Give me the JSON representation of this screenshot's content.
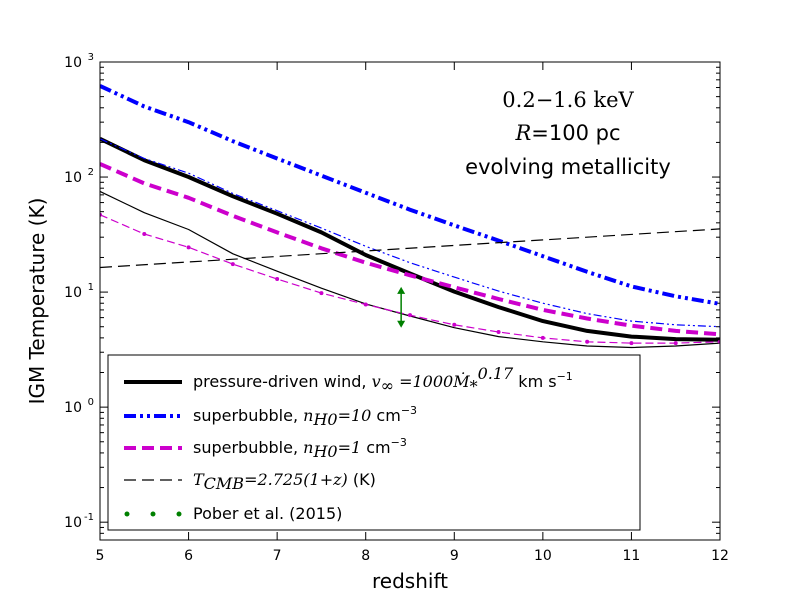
{
  "chart_data": {
    "type": "line",
    "title": "",
    "xlabel": "redshift",
    "ylabel": "IGM Temperature (K)",
    "xlim": [
      5,
      12
    ],
    "ylim": [
      0.07,
      1000
    ],
    "yscale": "log",
    "xticks": [
      "5",
      "6",
      "7",
      "8",
      "9",
      "10",
      "11",
      "12"
    ],
    "yticks": [
      {
        "base": "10",
        "exp": "-1",
        "value": 0.1
      },
      {
        "base": "10",
        "exp": "0",
        "value": 1
      },
      {
        "base": "10",
        "exp": "1",
        "value": 10
      },
      {
        "base": "10",
        "exp": "2",
        "value": 100
      },
      {
        "base": "10",
        "exp": "3",
        "value": 1000
      }
    ],
    "annotations": {
      "line1": "0.2−1.6 keV",
      "line2_var": "R",
      "line2_rest": "=100 pc",
      "line3": "evolving metallicity"
    },
    "legend_position": "lower-left",
    "legend": [
      {
        "key": "wind",
        "text": "pressure-driven wind, ",
        "math": "v∞ =1000Ṁ*^0.17",
        "math_main": "v",
        "math_sub": "∞",
        "math_mid": " =1000",
        "math_mdot": "Ṁ",
        "math_star": "*",
        "math_exp": "0.17",
        "tail": " km s",
        "tail_exp": "−1"
      },
      {
        "key": "sb10",
        "text": "superbubble, ",
        "math": "n",
        "math_sub": "H0",
        "math_mid": "=10",
        "tail": " cm",
        "tail_exp": "−3"
      },
      {
        "key": "sb1",
        "text": "superbubble, ",
        "math": "n",
        "math_sub": "H0",
        "math_mid": "=1",
        "tail": " cm",
        "tail_exp": "−3"
      },
      {
        "key": "cmb",
        "text": "",
        "math": "T",
        "math_sub": "CMB",
        "math_mid": "=2.725(1+",
        "math_z": "z",
        "math_end": ")",
        "tail": " (K)"
      },
      {
        "key": "pober",
        "text": "Pober et al. (2015)"
      }
    ],
    "series": [
      {
        "key": "wind",
        "name": "pressure-driven wind, thick",
        "color": "#000000",
        "x": [
          5,
          5.5,
          6,
          6.5,
          7,
          7.5,
          8,
          8.5,
          9,
          9.5,
          10,
          10.5,
          11,
          11.5,
          12
        ],
        "y": [
          215,
          140,
          100,
          68,
          48,
          33,
          21,
          14.5,
          10.1,
          7.4,
          5.6,
          4.6,
          4.1,
          3.9,
          3.85
        ]
      },
      {
        "key": "wind_thin",
        "name": "pressure-driven wind, thin",
        "color": "#000000",
        "x": [
          5,
          5.5,
          6,
          6.5,
          7,
          7.5,
          8,
          8.5,
          9,
          9.5,
          10,
          10.5,
          11,
          11.5,
          12
        ],
        "y": [
          75,
          49,
          35,
          21.5,
          15.2,
          10.8,
          7.9,
          6.2,
          4.9,
          4.1,
          3.7,
          3.4,
          3.3,
          3.4,
          3.6
        ]
      },
      {
        "key": "sb10",
        "name": "superbubble nH0=10 thick",
        "color": "#0000ff",
        "x": [
          5,
          5.5,
          6,
          6.5,
          7,
          7.5,
          8,
          8.5,
          9,
          9.5,
          10,
          10.5,
          11,
          11.5,
          12
        ],
        "y": [
          620,
          410,
          300,
          205,
          145,
          103,
          73,
          52,
          38,
          28,
          20.5,
          15,
          11.2,
          9.2,
          7.9
        ]
      },
      {
        "key": "sb10_thin",
        "name": "superbubble nH0=10 thin",
        "color": "#0000ff",
        "x": [
          5,
          5.5,
          6,
          6.5,
          7,
          7.5,
          8,
          8.5,
          9,
          9.5,
          10,
          10.5,
          11,
          11.5,
          12
        ],
        "y": [
          215,
          145,
          108,
          72,
          51,
          36,
          25,
          18,
          13.5,
          10.2,
          8,
          6.5,
          5.6,
          5.2,
          5.0
        ]
      },
      {
        "key": "sb1",
        "name": "superbubble nH0=1 thick",
        "color": "#cc00cc",
        "x": [
          5,
          5.5,
          6,
          6.5,
          7,
          7.5,
          8,
          8.5,
          9,
          9.5,
          10,
          10.5,
          11,
          11.5,
          12
        ],
        "y": [
          130,
          88,
          66,
          46,
          33,
          24,
          18,
          14,
          11,
          8.7,
          7.0,
          5.9,
          5.1,
          4.6,
          4.3
        ]
      },
      {
        "key": "sb1_thin",
        "name": "superbubble nH0=1 thin",
        "color": "#cc00cc",
        "x": [
          5,
          5.5,
          6,
          6.5,
          7,
          7.5,
          8,
          8.5,
          9,
          9.5,
          10,
          10.5,
          11,
          11.5,
          12
        ],
        "y": [
          47,
          32,
          24.5,
          17.5,
          13,
          9.8,
          7.8,
          6.3,
          5.2,
          4.5,
          4.0,
          3.7,
          3.6,
          3.6,
          3.7
        ]
      },
      {
        "key": "cmb",
        "name": "T_CMB",
        "color": "#000000",
        "x": [
          5,
          12
        ],
        "y": [
          16.35,
          35.43
        ]
      }
    ],
    "pober": {
      "color": "#008000",
      "x": 8.4,
      "y_low": 4.9,
      "y_high": 11.1
    }
  }
}
